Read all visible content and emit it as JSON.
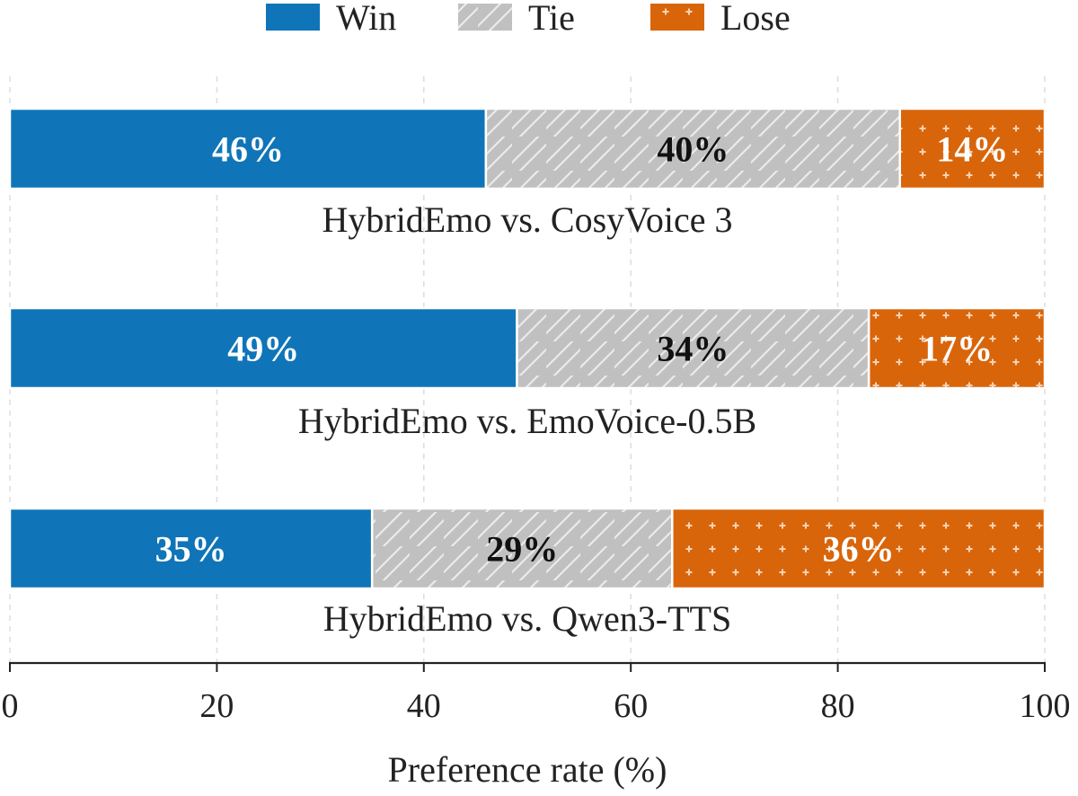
{
  "chart_data": {
    "type": "bar",
    "orientation": "horizontal",
    "stacked": true,
    "categories": [
      "HybridEmo vs. CosyVoice 3",
      "HybridEmo vs. EmoVoice-0.5B",
      "HybridEmo vs. Qwen3-TTS"
    ],
    "series": [
      {
        "name": "Win",
        "values": [
          46,
          49,
          35
        ],
        "labels": [
          "46%",
          "49%",
          "35%"
        ],
        "color": "#0f75b8",
        "pattern": "solid"
      },
      {
        "name": "Tie",
        "values": [
          40,
          34,
          29
        ],
        "labels": [
          "40%",
          "34%",
          "29%"
        ],
        "color": "#c0c0c0",
        "pattern": "diagonal-hatch"
      },
      {
        "name": "Lose",
        "values": [
          14,
          17,
          36
        ],
        "labels": [
          "14%",
          "17%",
          "36%"
        ],
        "color": "#d9650b",
        "pattern": "plus-dots"
      }
    ],
    "xlabel": "Preference rate (%)",
    "xlim": [
      0,
      100
    ],
    "xticks": [
      0,
      20,
      40,
      60,
      80,
      100
    ],
    "xtick_labels": [
      "0",
      "20",
      "40",
      "60",
      "80",
      "100"
    ],
    "grid": {
      "x": true,
      "style": "dashed"
    },
    "legend": {
      "position": "top-center",
      "entries": [
        "Win",
        "Tie",
        "Lose"
      ]
    }
  }
}
